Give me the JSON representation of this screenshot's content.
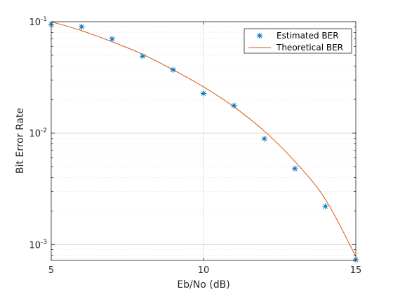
{
  "chart_data": {
    "type": "scatter",
    "title": "",
    "xlabel": "Eb/No (dB)",
    "ylabel": "Bit Error Rate",
    "x_ticks": [
      "5",
      "10",
      "15"
    ],
    "y_ticks": [
      {
        "base": "10",
        "exp": "-1"
      },
      {
        "base": "10",
        "exp": "-2"
      },
      {
        "base": "10",
        "exp": "-3"
      }
    ],
    "xlim": [
      5,
      15
    ],
    "ylim": [
      0.00072,
      0.1
    ],
    "yscale": "log",
    "grid": true,
    "legend_position": "top-right",
    "series": [
      {
        "name": "Estimated BER",
        "kind": "markers",
        "marker": "asterisk",
        "color": "#0072BD",
        "x": [
          5,
          6,
          7,
          8,
          9,
          10,
          11,
          12,
          13,
          14,
          15
        ],
        "y": [
          0.095,
          0.09,
          0.07,
          0.049,
          0.037,
          0.0227,
          0.0177,
          0.0089,
          0.0048,
          0.0022,
          0.00073
        ]
      },
      {
        "name": "Theoretical BER",
        "kind": "line",
        "color": "#D95319",
        "x": [
          5,
          6,
          7,
          8,
          9,
          10,
          11,
          12,
          13,
          14,
          15
        ],
        "y": [
          0.1,
          0.083,
          0.066,
          0.051,
          0.037,
          0.026,
          0.0172,
          0.0104,
          0.00556,
          0.00255,
          0.00078
        ]
      }
    ]
  }
}
